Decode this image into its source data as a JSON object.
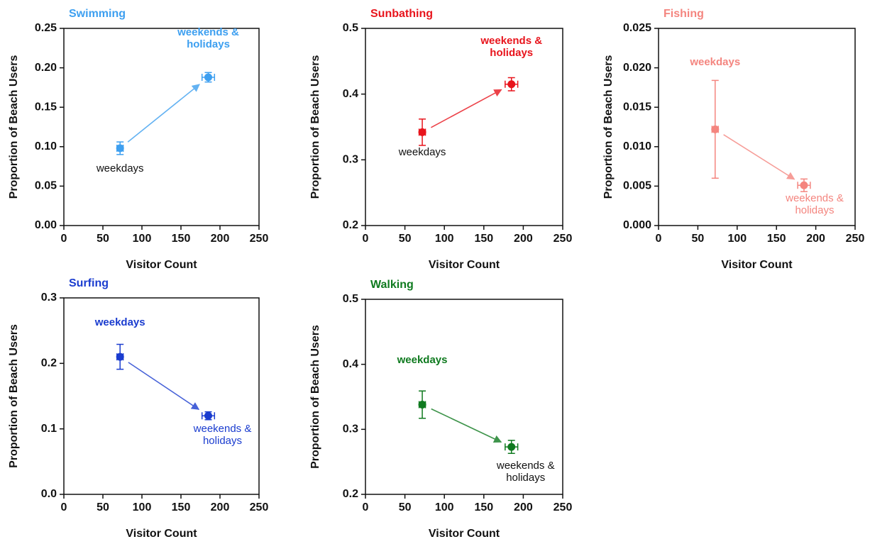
{
  "chart_data": [
    {
      "type": "scatter",
      "title": "Swimming",
      "color": "#3d9ff0",
      "xlabel": "Visitor Count",
      "ylabel": "Proportion of Beach Users",
      "xlim": [
        0,
        250
      ],
      "xticks": [
        0,
        50,
        100,
        150,
        200,
        250
      ],
      "ylim": [
        0,
        0.25
      ],
      "yticks": [
        {
          "value": 0,
          "label": "0.00"
        },
        0.05,
        {
          "value": 0.1,
          "label": "0.10"
        },
        0.15,
        {
          "value": 0.2,
          "label": "0.20"
        },
        0.25
      ],
      "series": [
        {
          "name": "weekdays",
          "x": [
            72
          ],
          "xerr": [
            4
          ],
          "values": [
            0.098
          ],
          "yerr": [
            0.008
          ]
        },
        {
          "name": "weekends & holidays",
          "x": [
            185
          ],
          "xerr": [
            8
          ],
          "values": [
            0.188
          ],
          "yerr": [
            0.006
          ]
        }
      ]
    },
    {
      "type": "scatter",
      "title": "Sunbathing",
      "color": "#e8141c",
      "xlabel": "Visitor Count",
      "ylabel": "Proportion of Beach Users",
      "xlim": [
        0,
        250
      ],
      "xticks": [
        0,
        50,
        100,
        150,
        200,
        250
      ],
      "ylim": [
        0.2,
        0.5
      ],
      "yticks": [
        0.2,
        0.3,
        0.4,
        0.5
      ],
      "series": [
        {
          "name": "weekdays",
          "x": [
            72
          ],
          "xerr": [
            4
          ],
          "values": [
            0.342
          ],
          "yerr": [
            0.02
          ]
        },
        {
          "name": "weekends & holidays",
          "x": [
            185
          ],
          "xerr": [
            8
          ],
          "values": [
            0.415
          ],
          "yerr": [
            0.01
          ]
        }
      ]
    },
    {
      "type": "scatter",
      "title": "Fishing",
      "color": "#f4857f",
      "xlabel": "Visitor Count",
      "ylabel": "Proportion of Beach Users",
      "xlim": [
        0,
        250
      ],
      "xticks": [
        0,
        50,
        100,
        150,
        200,
        250
      ],
      "ylim": [
        0,
        0.025
      ],
      "yticks": [
        {
          "value": 0,
          "label": "0.000"
        },
        0.005,
        {
          "value": 0.01,
          "label": "0.010"
        },
        0.015,
        {
          "value": 0.02,
          "label": "0.020"
        },
        0.025
      ],
      "series": [
        {
          "name": "weekdays",
          "x": [
            72
          ],
          "xerr": [
            4
          ],
          "values": [
            0.0122
          ],
          "yerr": [
            0.0062
          ]
        },
        {
          "name": "weekends & holidays",
          "x": [
            185
          ],
          "xerr": [
            8
          ],
          "values": [
            0.0051
          ],
          "yerr": [
            0.0008
          ]
        }
      ]
    },
    {
      "type": "scatter",
      "title": "Surfing",
      "color": "#1a3ccf",
      "xlabel": "Visitor Count",
      "ylabel": "Proportion of Beach Users",
      "xlim": [
        0,
        250
      ],
      "xticks": [
        0,
        50,
        100,
        150,
        200,
        250
      ],
      "ylim": [
        0,
        0.3
      ],
      "yticks": [
        {
          "value": 0,
          "label": "0.0"
        },
        0.1,
        0.2,
        0.3
      ],
      "series": [
        {
          "name": "weekdays",
          "x": [
            72
          ],
          "xerr": [
            4
          ],
          "values": [
            0.21
          ],
          "yerr": [
            0.019
          ]
        },
        {
          "name": "weekends & holidays",
          "x": [
            185
          ],
          "xerr": [
            8
          ],
          "values": [
            0.12
          ],
          "yerr": [
            0.006
          ]
        }
      ]
    },
    {
      "type": "scatter",
      "title": "Walking",
      "color": "#0f7a1f",
      "xlabel": "Visitor Count",
      "ylabel": "Proportion of Beach Users",
      "xlim": [
        0,
        250
      ],
      "xticks": [
        0,
        50,
        100,
        150,
        200,
        250
      ],
      "ylim": [
        0.2,
        0.5
      ],
      "yticks": [
        0.2,
        0.3,
        0.4,
        0.5
      ],
      "series": [
        {
          "name": "weekdays",
          "x": [
            72
          ],
          "xerr": [
            4
          ],
          "values": [
            0.338
          ],
          "yerr": [
            0.021
          ]
        },
        {
          "name": "weekends & holidays",
          "x": [
            185
          ],
          "xerr": [
            8
          ],
          "values": [
            0.273
          ],
          "yerr": [
            0.01
          ]
        }
      ]
    }
  ]
}
